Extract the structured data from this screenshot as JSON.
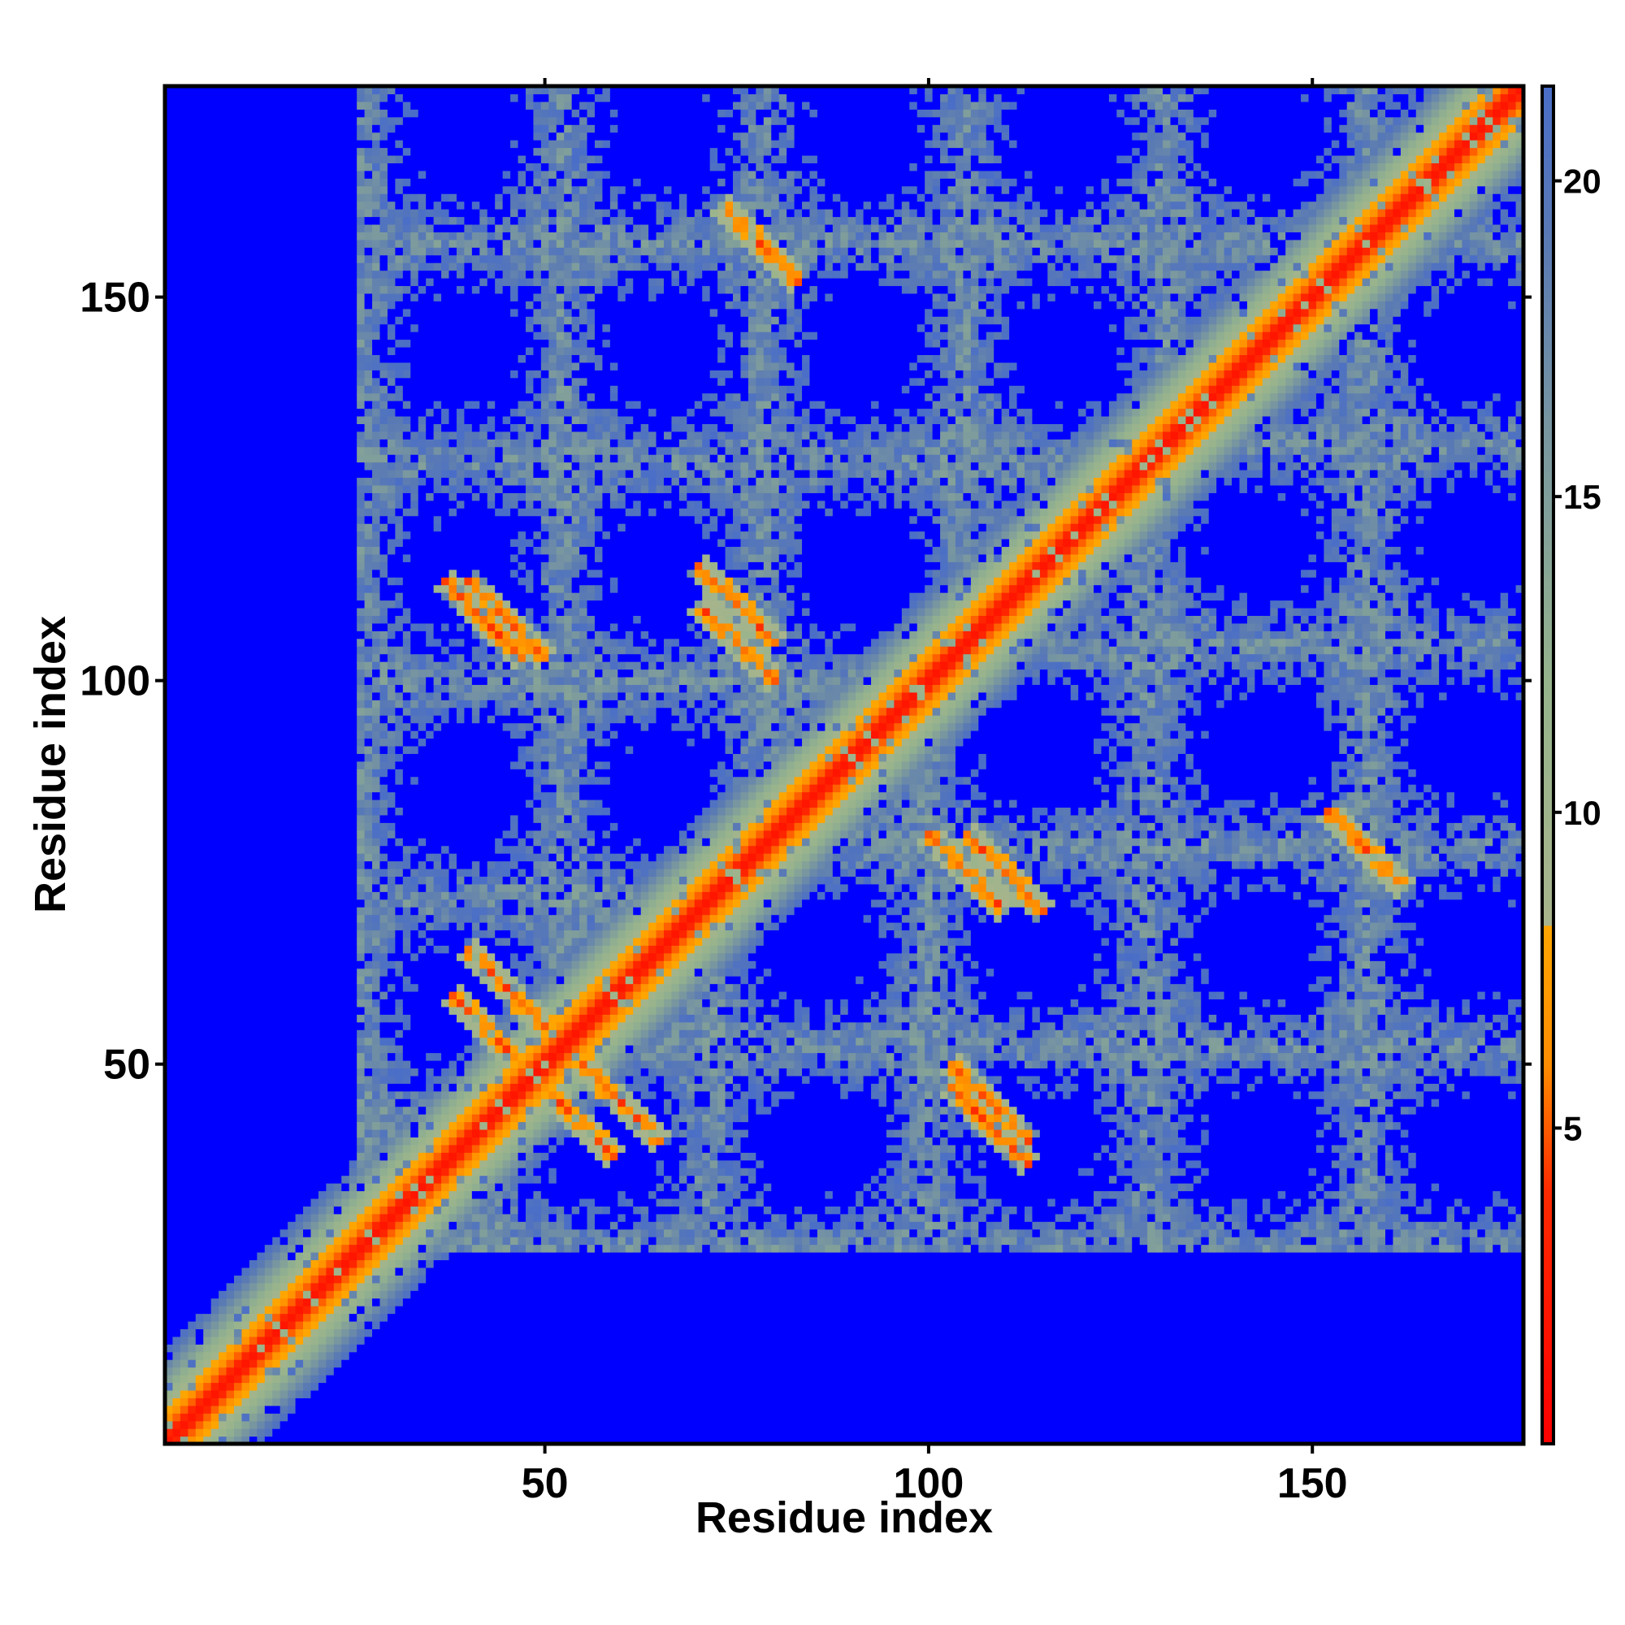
{
  "chart_data": {
    "type": "heatmap",
    "title": "",
    "xlabel": "Residue index",
    "ylabel": "Residue index",
    "x_range": [
      1,
      177
    ],
    "y_range": [
      1,
      177
    ],
    "x_ticks": [
      50,
      100,
      150
    ],
    "y_ticks": [
      50,
      100,
      150
    ],
    "colorbar": {
      "range": [
        0,
        21.5
      ],
      "ticks": [
        5,
        10,
        15,
        20
      ],
      "colors": [
        {
          "value": 0,
          "color": "#ff0000"
        },
        {
          "value": 4,
          "color": "#ff2a00"
        },
        {
          "value": 6,
          "color": "#ff8c00"
        },
        {
          "value": 8.2,
          "color": "#ffa500"
        },
        {
          "value": 8.2,
          "color": "#a8b48c"
        },
        {
          "value": 12,
          "color": "#96b48c"
        },
        {
          "value": 16,
          "color": "#7896a0"
        },
        {
          "value": 19,
          "color": "#5a7ab4"
        },
        {
          "value": 21.5,
          "color": "#4a6ec8"
        }
      ],
      "saturation_color": "#0000ff"
    },
    "description_of_values": "Symmetric residue-residue distance matrix; values below ~21 are coloured, larger distances saturate to blue.",
    "contact_bands": [
      {
        "type": "diagonal",
        "offset": 0,
        "strength": 1.0
      },
      {
        "type": "anti",
        "center": [
          45,
          60
        ],
        "length": 10
      },
      {
        "type": "anti",
        "center": [
          55,
          42
        ],
        "length": 8
      },
      {
        "type": "anti",
        "center": [
          45,
          108
        ],
        "length": 10
      },
      {
        "type": "anti",
        "center": [
          75,
          105
        ],
        "length": 10
      },
      {
        "type": "anti",
        "center": [
          78,
          157
        ],
        "length": 10
      },
      {
        "type": "anti",
        "center": [
          108,
          42
        ],
        "length": 10
      },
      {
        "type": "anti",
        "center": [
          110,
          75
        ],
        "length": 10
      },
      {
        "type": "anti",
        "center": [
          157,
          78
        ],
        "length": 10
      }
    ]
  }
}
